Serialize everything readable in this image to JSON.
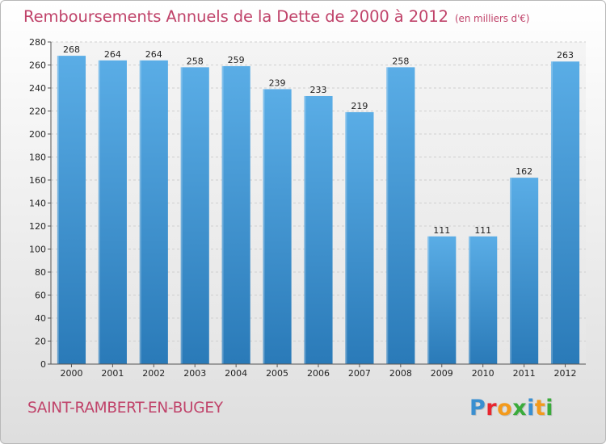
{
  "title": "Remboursements Annuels de la Dette de 2000 à 2012",
  "unit": "(en milliers d'€)",
  "location": "SAINT-RAMBERT-EN-BUGEY",
  "brand": {
    "name": "Proxiti",
    "letters": [
      {
        "char": "P",
        "color": "#3a8fd0"
      },
      {
        "char": "r",
        "color": "#e8262f"
      },
      {
        "char": "o",
        "color": "#f39a1c"
      },
      {
        "char": "x",
        "color": "#3aab3b"
      },
      {
        "char": "i",
        "color": "#3a8fd0"
      },
      {
        "char": "t",
        "color": "#f39a1c"
      },
      {
        "char": "i",
        "color": "#3aab3b"
      }
    ]
  },
  "colors": {
    "accent": "#c0436a",
    "bar_top": "#5aade6",
    "bar_bottom": "#2a7ab8"
  },
  "chart_data": {
    "type": "bar",
    "title": "Remboursements Annuels de la Dette de 2000 à 2012",
    "xlabel": "",
    "ylabel": "",
    "categories": [
      "2000",
      "2001",
      "2002",
      "2003",
      "2004",
      "2005",
      "2006",
      "2007",
      "2008",
      "2009",
      "2010",
      "2011",
      "2012"
    ],
    "values": [
      268,
      264,
      264,
      258,
      259,
      239,
      233,
      219,
      258,
      111,
      111,
      162,
      263
    ],
    "ylim": [
      0,
      280
    ],
    "ytick_step": 20,
    "grid": true
  }
}
